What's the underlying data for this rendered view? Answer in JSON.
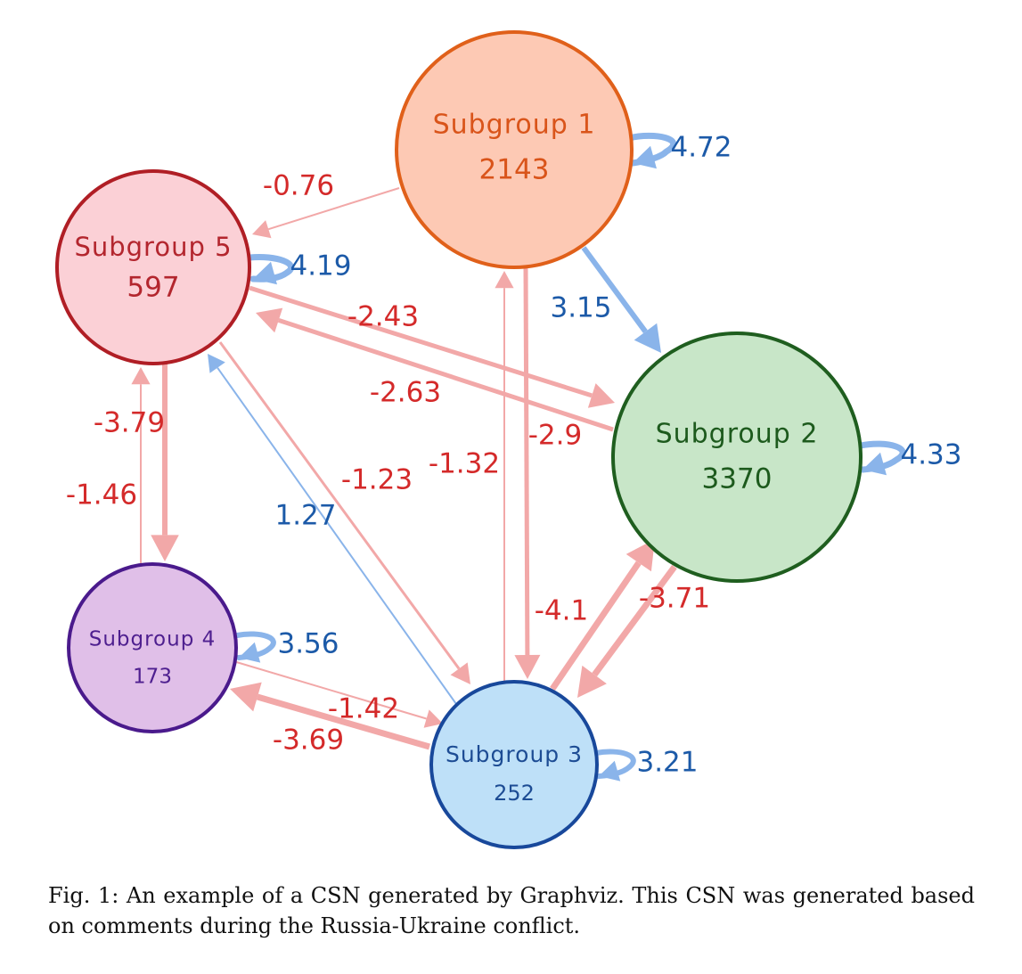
{
  "nodes": [
    {
      "id": "s1",
      "name": "Subgroup 1",
      "count": "2143",
      "fill": "#fdc9b4",
      "stroke": "#e0601a",
      "text": "#d9541a"
    },
    {
      "id": "s2",
      "name": "Subgroup 2",
      "count": "3370",
      "fill": "#c8e6c8",
      "stroke": "#1f5e1f",
      "text": "#1d5a1d"
    },
    {
      "id": "s3",
      "name": "Subgroup 3",
      "count": "252",
      "fill": "#bee0f8",
      "stroke": "#18489b",
      "text": "#1d4c94"
    },
    {
      "id": "s4",
      "name": "Subgroup 4",
      "count": "173",
      "fill": "#e0bfe8",
      "stroke": "#4a1a8c",
      "text": "#4e1f8f"
    },
    {
      "id": "s5",
      "name": "Subgroup 5",
      "count": "597",
      "fill": "#fbd0d6",
      "stroke": "#b01e25",
      "text": "#b3262e"
    }
  ],
  "edges": [
    {
      "from": "s1",
      "to": "s5",
      "weight": "-0.76"
    },
    {
      "from": "s1",
      "to": "s2",
      "weight": "3.15"
    },
    {
      "from": "s1",
      "to": "s3",
      "weight": "-2.9"
    },
    {
      "from": "s5",
      "to": "s2",
      "weight": "-2.43"
    },
    {
      "from": "s2",
      "to": "s5",
      "weight": "-2.63"
    },
    {
      "from": "s5",
      "to": "s4",
      "weight": "-3.79"
    },
    {
      "from": "s4",
      "to": "s5",
      "weight": "-1.46"
    },
    {
      "from": "s5",
      "to": "s3",
      "weight": "-1.23"
    },
    {
      "from": "s3",
      "to": "s5",
      "weight": "1.27"
    },
    {
      "from": "s3",
      "to": "s1",
      "weight": "-1.32"
    },
    {
      "from": "s3",
      "to": "s2",
      "weight": "-4.1"
    },
    {
      "from": "s2",
      "to": "s3",
      "weight": "-3.71"
    },
    {
      "from": "s4",
      "to": "s3",
      "weight": "-1.42"
    },
    {
      "from": "s3",
      "to": "s4",
      "weight": "-3.69"
    },
    {
      "from": "s1",
      "to": "s1",
      "weight": "4.72"
    },
    {
      "from": "s5",
      "to": "s5",
      "weight": "4.19"
    },
    {
      "from": "s2",
      "to": "s2",
      "weight": "4.33"
    },
    {
      "from": "s4",
      "to": "s4",
      "weight": "3.56"
    },
    {
      "from": "s3",
      "to": "s3",
      "weight": "3.21"
    }
  ],
  "colors": {
    "positive_edge": "#8ab4ea",
    "negative_edge": "#f2a8a8",
    "positive_label": "#1c5aa8",
    "negative_label": "#d42a2a"
  },
  "caption": "Fig. 1: An example of a CSN generated by Graphviz. This CSN was generated based on comments during the Russia-Ukraine conflict."
}
